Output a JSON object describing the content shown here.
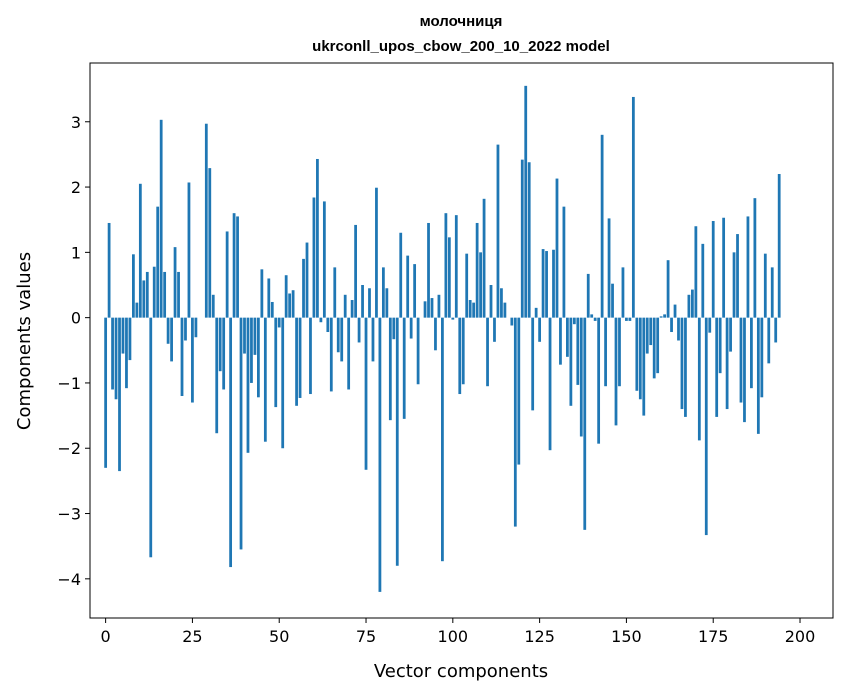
{
  "chart_data": {
    "type": "bar",
    "title": "молочниця",
    "subtitle": "ukrconll_upos_cbow_200_10_2022 model",
    "xlabel": "Vector components",
    "ylabel": "Components values",
    "xlim": [
      -4.5,
      209.5
    ],
    "ylim": [
      -4.6,
      3.9
    ],
    "xticks": [
      0,
      25,
      50,
      75,
      100,
      125,
      150,
      175,
      200
    ],
    "yticks": [
      -4,
      -3,
      -2,
      -1,
      0,
      1,
      2,
      3
    ],
    "grid": false,
    "legend": "none",
    "color": "#1f77b4",
    "values": [
      -2.3,
      1.45,
      -1.1,
      -1.25,
      -2.35,
      -0.55,
      -1.08,
      -0.65,
      0.97,
      0.23,
      2.05,
      0.57,
      0.7,
      -3.67,
      0.78,
      1.7,
      3.03,
      0.7,
      -0.4,
      -0.67,
      1.08,
      0.7,
      -1.2,
      -0.35,
      2.07,
      -1.3,
      -0.3,
      0.0,
      0.0,
      2.97,
      2.29,
      0.35,
      -1.77,
      -0.82,
      -1.1,
      1.32,
      -3.82,
      1.6,
      1.55,
      -3.55,
      -0.55,
      -2.07,
      -1.0,
      -0.57,
      -1.22,
      0.74,
      -1.9,
      0.6,
      0.24,
      -1.37,
      -0.15,
      -2.0,
      0.65,
      0.37,
      0.42,
      -1.35,
      -1.23,
      0.9,
      1.15,
      -1.17,
      1.84,
      2.43,
      -0.07,
      1.78,
      -0.22,
      -1.13,
      0.77,
      -0.53,
      -0.67,
      0.35,
      -1.1,
      0.27,
      1.42,
      -0.38,
      0.5,
      -2.33,
      0.45,
      -0.67,
      1.99,
      -4.2,
      0.77,
      0.45,
      -1.57,
      -0.33,
      -3.8,
      1.3,
      -1.55,
      0.95,
      -0.32,
      0.82,
      -1.02,
      0.0,
      0.25,
      1.45,
      0.3,
      -0.5,
      0.35,
      -3.73,
      1.6,
      1.23,
      -0.03,
      1.57,
      -1.17,
      -1.02,
      0.98,
      0.27,
      0.23,
      1.45,
      1.0,
      1.82,
      -1.05,
      0.5,
      -0.37,
      2.65,
      0.45,
      0.23,
      0.0,
      -0.12,
      -3.2,
      -2.25,
      2.42,
      3.55,
      2.38,
      -1.42,
      0.15,
      -0.37,
      1.05,
      1.02,
      -2.03,
      1.04,
      2.13,
      -0.72,
      1.7,
      -0.6,
      -1.35,
      -0.1,
      -1.03,
      -1.82,
      -3.25,
      0.67,
      0.05,
      -0.05,
      -1.93,
      2.8,
      -1.05,
      1.52,
      0.52,
      -1.65,
      -1.05,
      0.77,
      -0.05,
      -0.05,
      3.38,
      -1.12,
      -1.25,
      -1.5,
      -0.55,
      -0.42,
      -0.93,
      -0.85,
      0.02,
      0.05,
      0.88,
      -0.22,
      0.2,
      -0.35,
      -1.4,
      -1.52,
      0.35,
      0.43,
      1.4,
      -1.88,
      1.13,
      -3.33,
      -0.23,
      1.48,
      -1.52,
      -0.85,
      1.53,
      -1.4,
      -0.52,
      1.0,
      1.28,
      -1.3,
      -1.6,
      1.55,
      -1.08,
      1.83,
      -1.78,
      -1.22,
      0.98,
      -0.7,
      0.77,
      -0.38,
      2.2
    ]
  }
}
